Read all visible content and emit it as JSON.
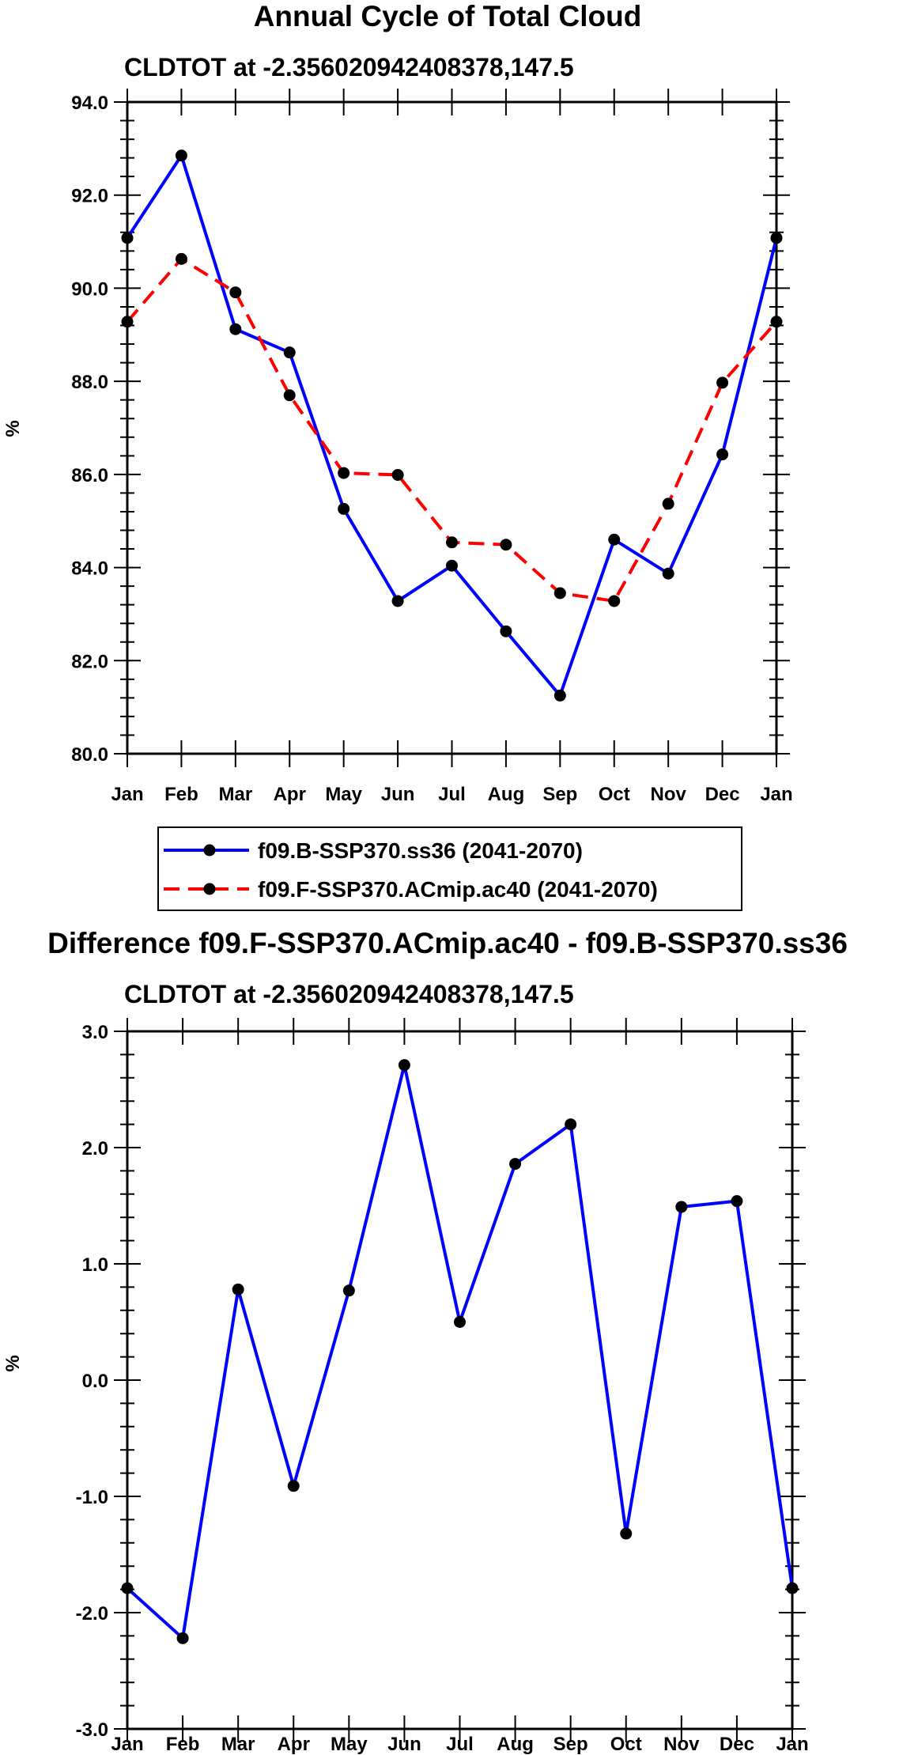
{
  "chart_data": [
    {
      "type": "line",
      "title": "Annual Cycle of Total Cloud",
      "subtitle": "CLDTOT at -2.356020942408378,147.5",
      "xlabel": "",
      "ylabel": "%",
      "categories": [
        "Jan",
        "Feb",
        "Mar",
        "Apr",
        "May",
        "Jun",
        "Jul",
        "Aug",
        "Sep",
        "Oct",
        "Nov",
        "Dec",
        "Jan"
      ],
      "ylim": [
        80.0,
        94.0
      ],
      "yticks": [
        "80.0",
        "82.0",
        "84.0",
        "86.0",
        "88.0",
        "90.0",
        "92.0",
        "94.0"
      ],
      "series": [
        {
          "name": "f09.B-SSP370.ss36 (2041-2070)",
          "color": "#0000ff",
          "dash": "solid",
          "values": [
            91.08,
            92.85,
            89.12,
            88.62,
            85.26,
            83.28,
            84.04,
            82.63,
            81.25,
            84.6,
            83.87,
            86.43,
            91.08
          ]
        },
        {
          "name": "f09.F-SSP370.ACmip.ac40 (2041-2070)",
          "color": "#ff0000",
          "dash": "dashed",
          "values": [
            89.28,
            90.63,
            89.91,
            87.7,
            86.03,
            85.99,
            84.54,
            84.49,
            83.45,
            83.28,
            85.37,
            87.97,
            89.28
          ]
        }
      ],
      "legend": "bottom"
    },
    {
      "type": "line",
      "title": "Difference f09.F-SSP370.ACmip.ac40 - f09.B-SSP370.ss36",
      "subtitle": "CLDTOT at -2.356020942408378,147.5",
      "xlabel": "",
      "ylabel": "%",
      "categories": [
        "Jan",
        "Feb",
        "Mar",
        "Apr",
        "May",
        "Jun",
        "Jul",
        "Aug",
        "Sep",
        "Oct",
        "Nov",
        "Dec",
        "Jan"
      ],
      "ylim": [
        -3.0,
        3.0
      ],
      "yticks": [
        "-3.0",
        "-2.0",
        "-1.0",
        "0.0",
        "1.0",
        "2.0",
        "3.0"
      ],
      "series": [
        {
          "name": "Difference",
          "color": "#0000ff",
          "dash": "solid",
          "values": [
            -1.79,
            -2.22,
            0.78,
            -0.91,
            0.77,
            2.71,
            0.5,
            1.86,
            2.2,
            -1.32,
            1.49,
            1.54,
            -1.79
          ]
        }
      ]
    }
  ]
}
